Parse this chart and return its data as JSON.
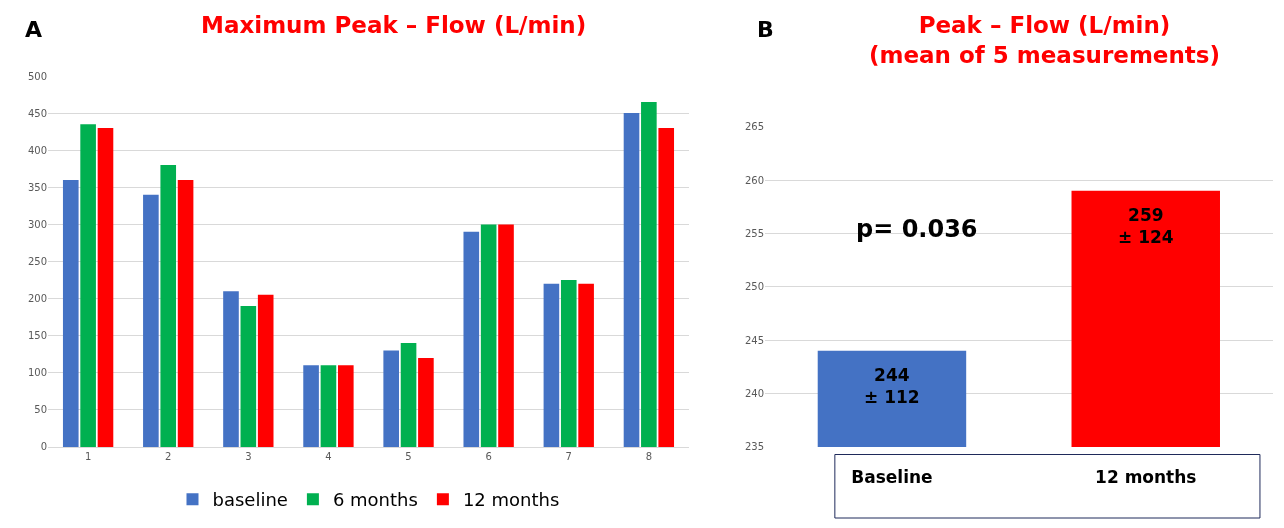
{
  "chart_data": [
    {
      "type": "bar",
      "title": "Maximum Peak – Flow (L/min)",
      "annotations": [
        "A"
      ],
      "categories": [
        "1",
        "2",
        "3",
        "4",
        "5",
        "6",
        "7",
        "8"
      ],
      "series": [
        {
          "name": "baseline",
          "color": "#4472c4",
          "values": [
            360,
            340,
            210,
            110,
            130,
            290,
            220,
            450
          ]
        },
        {
          "name": "6 months",
          "color": "#00b050",
          "values": [
            435,
            380,
            190,
            110,
            140,
            300,
            225,
            465
          ]
        },
        {
          "name": "12 months",
          "color": "#ff0000",
          "values": [
            430,
            360,
            205,
            110,
            120,
            300,
            220,
            430
          ]
        }
      ],
      "ylim": [
        0,
        500
      ],
      "yticks": [
        0,
        50,
        100,
        150,
        200,
        250,
        300,
        350,
        400,
        450,
        500
      ],
      "grid": "y",
      "legend": "bottom"
    },
    {
      "type": "bar",
      "title": "Peak – Flow (L/min)\n(mean of 5 measurements)",
      "annotations": [
        "B",
        "p= 0.036"
      ],
      "categories": [
        "Baseline",
        "12 months"
      ],
      "values": [
        244,
        259
      ],
      "colors": [
        "#4472c4",
        "#ff0000"
      ],
      "value_labels": [
        "244\n± 112",
        "259\n± 124"
      ],
      "ylim": [
        235,
        265
      ],
      "yticks": [
        235,
        240,
        245,
        250,
        255,
        260,
        265
      ],
      "grid": "y"
    }
  ]
}
